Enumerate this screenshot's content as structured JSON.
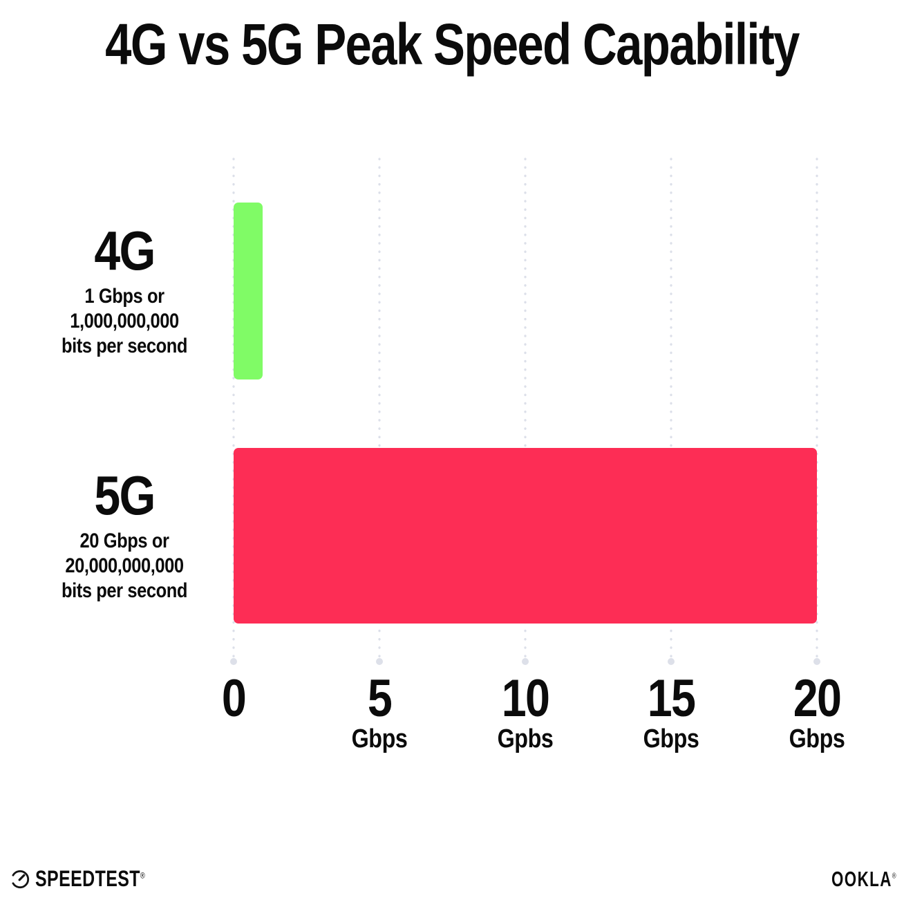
{
  "title": "4G vs 5G Peak Speed Capability",
  "chart_data": {
    "type": "bar",
    "orientation": "horizontal",
    "title": "4G vs 5G Peak Speed Capability",
    "categories": [
      "4G",
      "5G"
    ],
    "values": [
      1,
      20
    ],
    "value_unit": "Gbps",
    "xlabel": "",
    "ylabel": "",
    "xlim": [
      0,
      20
    ],
    "grid": "dotted-vertical-gridlines",
    "legend": "none",
    "bars": [
      {
        "category": "4G",
        "value_gbps": 1,
        "color": "#80FB66",
        "sublabel_lines": [
          "1 Gbps or",
          "1,000,000,000",
          "bits per second"
        ]
      },
      {
        "category": "5G",
        "value_gbps": 20,
        "color": "#FD2D55",
        "sublabel_lines": [
          "20 Gbps or",
          "20,000,000,000",
          "bits per second"
        ]
      }
    ],
    "x_ticks": [
      {
        "value": 0,
        "label": "0",
        "unit": ""
      },
      {
        "value": 5,
        "label": "5",
        "unit": "Gbps"
      },
      {
        "value": 10,
        "label": "10",
        "unit": "Gpbs"
      },
      {
        "value": 15,
        "label": "15",
        "unit": "Gbps"
      },
      {
        "value": 20,
        "label": "20",
        "unit": "Gbps"
      }
    ]
  },
  "footer": {
    "speedtest_label": "SPEEDTEST",
    "speedtest_reg_mark": "®",
    "speedtest_icon": "speedometer-icon",
    "ookla_label": "OOKLA",
    "ookla_reg_mark": "®"
  },
  "colors": {
    "bar_4g": "#80FB66",
    "bar_5g": "#FD2D55",
    "grid_dot": "#DCDFE9",
    "text": "#0B0B0B",
    "background": "#FFFFFF"
  }
}
